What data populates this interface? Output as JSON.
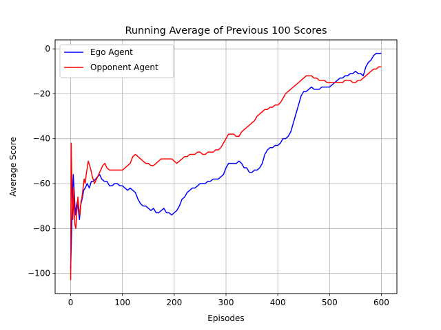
{
  "chart_data": {
    "type": "line",
    "title": "Running Average of Previous 100 Scores",
    "xlabel": "Episodes",
    "ylabel": "Average Score",
    "xlim": [
      -30,
      630
    ],
    "ylim": [
      -109,
      4
    ],
    "xticks": [
      0,
      100,
      200,
      300,
      400,
      500,
      600
    ],
    "yticks": [
      -100,
      -80,
      -60,
      -40,
      -20,
      0
    ],
    "xtick_labels": [
      "0",
      "100",
      "200",
      "300",
      "400",
      "500",
      "600"
    ],
    "ytick_labels": [
      "−100",
      "−80",
      "−60",
      "−40",
      "−20",
      "0"
    ],
    "grid": true,
    "legend_position": "top-left",
    "series": [
      {
        "name": "Ego Agent",
        "color": "#0000ff",
        "points": [
          [
            0,
            -98
          ],
          [
            2,
            -80
          ],
          [
            4,
            -62
          ],
          [
            5,
            -56
          ],
          [
            7,
            -64
          ],
          [
            9,
            -74
          ],
          [
            11,
            -70
          ],
          [
            13,
            -68
          ],
          [
            15,
            -72
          ],
          [
            17,
            -76
          ],
          [
            19,
            -70
          ],
          [
            21,
            -68
          ],
          [
            23,
            -66
          ],
          [
            25,
            -63
          ],
          [
            28,
            -62
          ],
          [
            32,
            -60
          ],
          [
            36,
            -62
          ],
          [
            40,
            -59
          ],
          [
            44,
            -59
          ],
          [
            48,
            -58
          ],
          [
            52,
            -57
          ],
          [
            56,
            -56
          ],
          [
            60,
            -58
          ],
          [
            65,
            -59
          ],
          [
            70,
            -59
          ],
          [
            75,
            -61
          ],
          [
            80,
            -61
          ],
          [
            85,
            -60
          ],
          [
            90,
            -60
          ],
          [
            95,
            -61
          ],
          [
            100,
            -61
          ],
          [
            105,
            -62
          ],
          [
            110,
            -63
          ],
          [
            115,
            -62
          ],
          [
            120,
            -63
          ],
          [
            125,
            -64
          ],
          [
            130,
            -67
          ],
          [
            135,
            -69
          ],
          [
            140,
            -70
          ],
          [
            145,
            -70
          ],
          [
            150,
            -71
          ],
          [
            155,
            -72
          ],
          [
            160,
            -71
          ],
          [
            165,
            -73
          ],
          [
            170,
            -73
          ],
          [
            175,
            -72
          ],
          [
            180,
            -71
          ],
          [
            185,
            -73
          ],
          [
            190,
            -73
          ],
          [
            195,
            -74
          ],
          [
            200,
            -73
          ],
          [
            205,
            -72
          ],
          [
            210,
            -70
          ],
          [
            215,
            -67
          ],
          [
            220,
            -66
          ],
          [
            225,
            -64
          ],
          [
            230,
            -63
          ],
          [
            235,
            -62
          ],
          [
            240,
            -62
          ],
          [
            245,
            -61
          ],
          [
            250,
            -60
          ],
          [
            255,
            -60
          ],
          [
            260,
            -60
          ],
          [
            265,
            -59
          ],
          [
            270,
            -59
          ],
          [
            275,
            -58
          ],
          [
            280,
            -58
          ],
          [
            285,
            -58
          ],
          [
            290,
            -57
          ],
          [
            295,
            -56
          ],
          [
            300,
            -53
          ],
          [
            305,
            -51
          ],
          [
            310,
            -51
          ],
          [
            315,
            -51
          ],
          [
            320,
            -51
          ],
          [
            325,
            -50
          ],
          [
            330,
            -51
          ],
          [
            335,
            -53
          ],
          [
            340,
            -53
          ],
          [
            345,
            -55
          ],
          [
            350,
            -55
          ],
          [
            355,
            -54
          ],
          [
            360,
            -54
          ],
          [
            365,
            -53
          ],
          [
            370,
            -51
          ],
          [
            375,
            -47
          ],
          [
            380,
            -45
          ],
          [
            385,
            -44
          ],
          [
            390,
            -44
          ],
          [
            395,
            -43
          ],
          [
            400,
            -43
          ],
          [
            405,
            -42
          ],
          [
            410,
            -40
          ],
          [
            415,
            -40
          ],
          [
            420,
            -39
          ],
          [
            425,
            -37
          ],
          [
            430,
            -33
          ],
          [
            435,
            -29
          ],
          [
            440,
            -25
          ],
          [
            445,
            -21
          ],
          [
            450,
            -19
          ],
          [
            455,
            -19
          ],
          [
            460,
            -18
          ],
          [
            465,
            -17
          ],
          [
            470,
            -18
          ],
          [
            475,
            -18
          ],
          [
            480,
            -18
          ],
          [
            485,
            -17
          ],
          [
            490,
            -17
          ],
          [
            495,
            -17
          ],
          [
            500,
            -17
          ],
          [
            505,
            -16
          ],
          [
            510,
            -15
          ],
          [
            515,
            -14
          ],
          [
            520,
            -13
          ],
          [
            525,
            -13
          ],
          [
            530,
            -12
          ],
          [
            535,
            -12
          ],
          [
            540,
            -11
          ],
          [
            545,
            -11
          ],
          [
            550,
            -10
          ],
          [
            555,
            -11
          ],
          [
            560,
            -11
          ],
          [
            565,
            -12
          ],
          [
            570,
            -8
          ],
          [
            575,
            -6
          ],
          [
            580,
            -5
          ],
          [
            585,
            -3
          ],
          [
            590,
            -2
          ],
          [
            595,
            -2
          ],
          [
            600,
            -2
          ]
        ]
      },
      {
        "name": "Opponent Agent",
        "color": "#ff0000",
        "points": [
          [
            0,
            -103
          ],
          [
            1,
            -42
          ],
          [
            2,
            -55
          ],
          [
            3,
            -70
          ],
          [
            4,
            -76
          ],
          [
            5,
            -72
          ],
          [
            6,
            -62
          ],
          [
            8,
            -78
          ],
          [
            10,
            -80
          ],
          [
            12,
            -72
          ],
          [
            14,
            -66
          ],
          [
            16,
            -72
          ],
          [
            18,
            -74
          ],
          [
            20,
            -68
          ],
          [
            22,
            -66
          ],
          [
            24,
            -62
          ],
          [
            26,
            -58
          ],
          [
            28,
            -60
          ],
          [
            30,
            -56
          ],
          [
            34,
            -50
          ],
          [
            38,
            -53
          ],
          [
            42,
            -57
          ],
          [
            46,
            -60
          ],
          [
            50,
            -58
          ],
          [
            54,
            -56
          ],
          [
            58,
            -54
          ],
          [
            62,
            -52
          ],
          [
            66,
            -51
          ],
          [
            70,
            -53
          ],
          [
            75,
            -54
          ],
          [
            80,
            -54
          ],
          [
            85,
            -54
          ],
          [
            90,
            -54
          ],
          [
            95,
            -54
          ],
          [
            100,
            -54
          ],
          [
            105,
            -53
          ],
          [
            110,
            -52
          ],
          [
            115,
            -51
          ],
          [
            120,
            -48
          ],
          [
            125,
            -47
          ],
          [
            130,
            -48
          ],
          [
            135,
            -49
          ],
          [
            140,
            -50
          ],
          [
            145,
            -51
          ],
          [
            150,
            -51
          ],
          [
            155,
            -52
          ],
          [
            160,
            -52
          ],
          [
            165,
            -51
          ],
          [
            170,
            -50
          ],
          [
            175,
            -49
          ],
          [
            180,
            -49
          ],
          [
            185,
            -49
          ],
          [
            190,
            -49
          ],
          [
            195,
            -49
          ],
          [
            200,
            -50
          ],
          [
            205,
            -51
          ],
          [
            210,
            -50
          ],
          [
            215,
            -49
          ],
          [
            220,
            -48
          ],
          [
            225,
            -48
          ],
          [
            230,
            -47
          ],
          [
            235,
            -47
          ],
          [
            240,
            -47
          ],
          [
            245,
            -46
          ],
          [
            250,
            -46
          ],
          [
            255,
            -47
          ],
          [
            260,
            -47
          ],
          [
            265,
            -46
          ],
          [
            270,
            -46
          ],
          [
            275,
            -46
          ],
          [
            280,
            -45
          ],
          [
            285,
            -45
          ],
          [
            290,
            -44
          ],
          [
            295,
            -42
          ],
          [
            300,
            -40
          ],
          [
            305,
            -38
          ],
          [
            310,
            -38
          ],
          [
            315,
            -38
          ],
          [
            320,
            -39
          ],
          [
            325,
            -39
          ],
          [
            330,
            -37
          ],
          [
            335,
            -36
          ],
          [
            340,
            -35
          ],
          [
            345,
            -34
          ],
          [
            350,
            -33
          ],
          [
            355,
            -32
          ],
          [
            360,
            -30
          ],
          [
            365,
            -29
          ],
          [
            370,
            -28
          ],
          [
            375,
            -27
          ],
          [
            380,
            -27
          ],
          [
            385,
            -26
          ],
          [
            390,
            -26
          ],
          [
            395,
            -25
          ],
          [
            400,
            -25
          ],
          [
            405,
            -24
          ],
          [
            410,
            -22
          ],
          [
            415,
            -20
          ],
          [
            420,
            -19
          ],
          [
            425,
            -18
          ],
          [
            430,
            -17
          ],
          [
            435,
            -16
          ],
          [
            440,
            -15
          ],
          [
            445,
            -14
          ],
          [
            450,
            -13
          ],
          [
            455,
            -12
          ],
          [
            460,
            -12
          ],
          [
            465,
            -12
          ],
          [
            470,
            -13
          ],
          [
            475,
            -13
          ],
          [
            480,
            -14
          ],
          [
            485,
            -14
          ],
          [
            490,
            -14
          ],
          [
            495,
            -15
          ],
          [
            500,
            -15
          ],
          [
            505,
            -15
          ],
          [
            510,
            -15
          ],
          [
            515,
            -15
          ],
          [
            520,
            -15
          ],
          [
            525,
            -15
          ],
          [
            530,
            -14
          ],
          [
            535,
            -14
          ],
          [
            540,
            -14
          ],
          [
            545,
            -15
          ],
          [
            550,
            -15
          ],
          [
            555,
            -14
          ],
          [
            560,
            -14
          ],
          [
            565,
            -13
          ],
          [
            570,
            -12
          ],
          [
            575,
            -11
          ],
          [
            580,
            -10
          ],
          [
            585,
            -9
          ],
          [
            590,
            -9
          ],
          [
            595,
            -8
          ],
          [
            600,
            -8
          ]
        ]
      }
    ]
  }
}
